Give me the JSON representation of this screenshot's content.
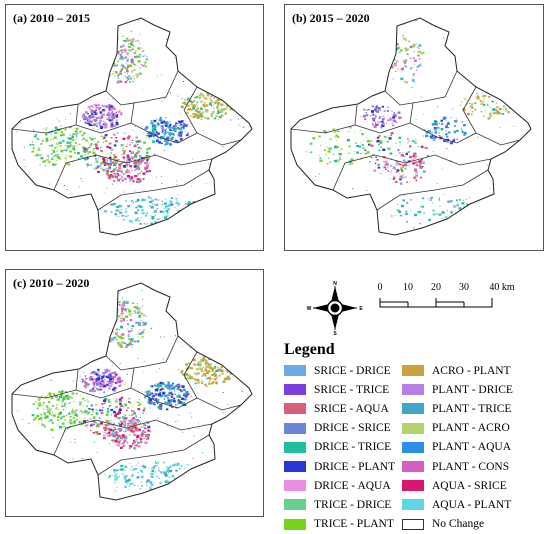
{
  "panels": [
    {
      "id": "a",
      "label": "(a) 2010 – 2015"
    },
    {
      "id": "b",
      "label": "(b) 2015 – 2020"
    },
    {
      "id": "c",
      "label": "(c) 2010 – 2020"
    }
  ],
  "compass": {
    "n": "N",
    "s": "S",
    "e": "E",
    "w": "W"
  },
  "scalebar": {
    "ticks": [
      "0",
      "10",
      "20",
      "30",
      "40 km"
    ],
    "unit": "km"
  },
  "legend": {
    "title": "Legend",
    "items": [
      {
        "label": "SRICE - DRICE",
        "color": "#6fa8e8"
      },
      {
        "label": "SRICE - TRICE",
        "color": "#7b3fe0"
      },
      {
        "label": "SRICE - AQUA",
        "color": "#d9607a"
      },
      {
        "label": "DRICE - SRICE",
        "color": "#6b86d6"
      },
      {
        "label": "DRICE - TRICE",
        "color": "#1fbf9b"
      },
      {
        "label": "DRICE - PLANT",
        "color": "#2a35d8"
      },
      {
        "label": "DRICE - AQUA",
        "color": "#e98ee0"
      },
      {
        "label": "TRICE - DRICE",
        "color": "#66d08c"
      },
      {
        "label": "TRICE - PLANT",
        "color": "#78d21e"
      },
      {
        "label": "ACRO - PLANT",
        "color": "#c9a43e"
      },
      {
        "label": "PLANT - DRICE",
        "color": "#b57fe6"
      },
      {
        "label": "PLANT - TRICE",
        "color": "#3fa6c8"
      },
      {
        "label": "PLANT - ACRO",
        "color": "#b5d36a"
      },
      {
        "label": "PLANT - AQUA",
        "color": "#2b8ee8"
      },
      {
        "label": "PLANT - CONS",
        "color": "#d35fc0"
      },
      {
        "label": "AQUA - SRICE",
        "color": "#d6176d"
      },
      {
        "label": "AQUA - PLANT",
        "color": "#5fd6e6"
      },
      {
        "label": "No Change",
        "color": "#ffffff"
      }
    ]
  }
}
